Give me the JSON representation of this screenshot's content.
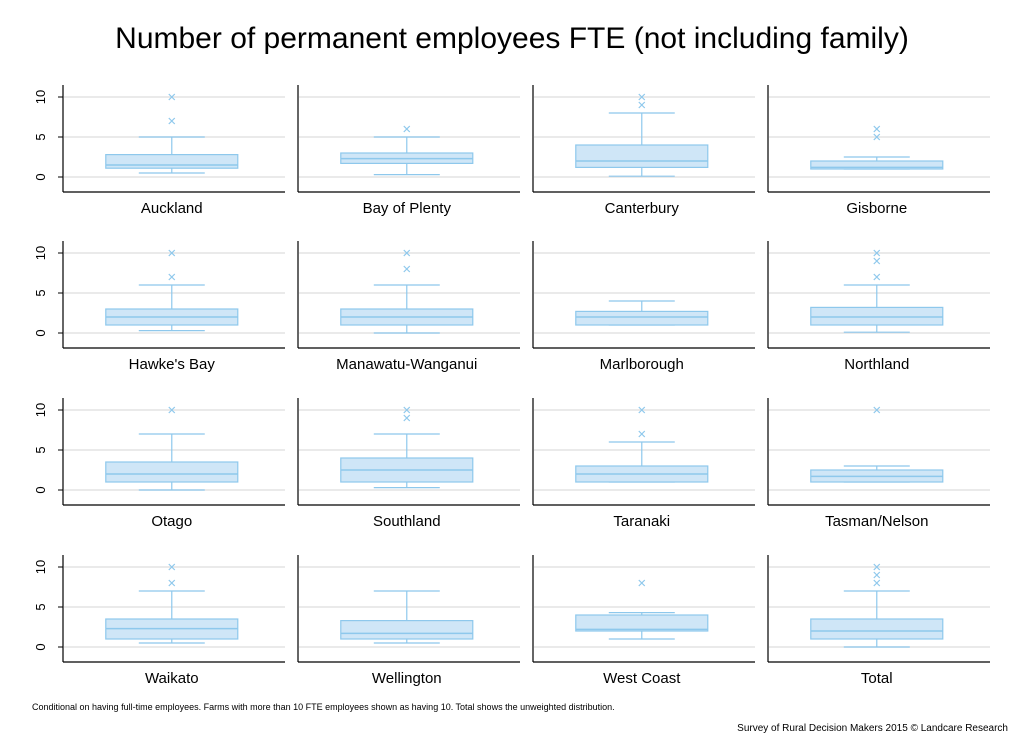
{
  "chart_data": {
    "type": "box",
    "title": "Number of permanent employees FTE (not including family)",
    "note": "Conditional on having full-time employees. Farms with more than 10 FTE employees shown as having 10. Total shows the unweighted distribution.",
    "credit": "Survey of Rural Decision Makers 2015 © Landcare Research",
    "ylim": [
      0,
      10
    ],
    "yticks": [
      0,
      5,
      10
    ],
    "grid": true,
    "box_fill": "#cfe6f7",
    "color": "#8ec8ec",
    "categories": [
      "Auckland",
      "Bay of Plenty",
      "Canterbury",
      "Gisborne",
      "Hawke's Bay",
      "Manawatu-Wanganui",
      "Marlborough",
      "Northland",
      "Otago",
      "Southland",
      "Taranaki",
      "Tasman/Nelson",
      "Waikato",
      "Wellington",
      "West Coast",
      "Total"
    ],
    "boxes": [
      {
        "min": 0.5,
        "q1": 1.1,
        "median": 1.5,
        "q3": 2.8,
        "max": 5,
        "outliers": [
          7,
          10
        ]
      },
      {
        "min": 0.3,
        "q1": 1.7,
        "median": 2.3,
        "q3": 3,
        "max": 5,
        "outliers": [
          6
        ]
      },
      {
        "min": 0.1,
        "q1": 1.2,
        "median": 2,
        "q3": 4,
        "max": 8,
        "outliers": [
          9,
          10
        ]
      },
      {
        "min": 1,
        "q1": 1,
        "median": 1.2,
        "q3": 2,
        "max": 2.5,
        "outliers": [
          5,
          6
        ]
      },
      {
        "min": 0.3,
        "q1": 1,
        "median": 2,
        "q3": 3,
        "max": 6,
        "outliers": [
          7,
          10
        ]
      },
      {
        "min": 0,
        "q1": 1,
        "median": 2,
        "q3": 3,
        "max": 6,
        "outliers": [
          8,
          10
        ]
      },
      {
        "min": 1,
        "q1": 1,
        "median": 2,
        "q3": 2.7,
        "max": 4,
        "outliers": []
      },
      {
        "min": 0.1,
        "q1": 1,
        "median": 2,
        "q3": 3.2,
        "max": 6,
        "outliers": [
          7,
          9,
          10
        ]
      },
      {
        "min": 0,
        "q1": 1,
        "median": 2,
        "q3": 3.5,
        "max": 7,
        "outliers": [
          10
        ]
      },
      {
        "min": 0.3,
        "q1": 1,
        "median": 2.5,
        "q3": 4,
        "max": 7,
        "outliers": [
          9,
          10
        ]
      },
      {
        "min": 1,
        "q1": 1,
        "median": 2,
        "q3": 3,
        "max": 6,
        "outliers": [
          7,
          10
        ]
      },
      {
        "min": 1,
        "q1": 1,
        "median": 1.7,
        "q3": 2.5,
        "max": 3,
        "outliers": [
          10
        ]
      },
      {
        "min": 0.5,
        "q1": 1,
        "median": 2.3,
        "q3": 3.5,
        "max": 7,
        "outliers": [
          8,
          10
        ]
      },
      {
        "min": 0.5,
        "q1": 1,
        "median": 1.7,
        "q3": 3.3,
        "max": 7,
        "outliers": []
      },
      {
        "min": 1,
        "q1": 2,
        "median": 2.2,
        "q3": 4,
        "max": 4.3,
        "outliers": [
          8
        ]
      },
      {
        "min": 0,
        "q1": 1,
        "median": 2,
        "q3": 3.5,
        "max": 7,
        "outliers": [
          8,
          9,
          10
        ]
      }
    ]
  }
}
